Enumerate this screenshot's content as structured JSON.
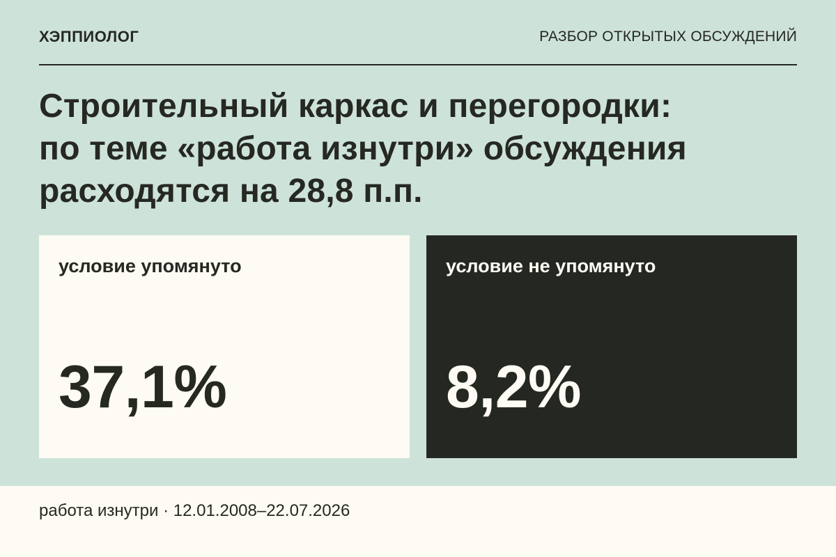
{
  "header": {
    "brand": "ХЭППИОЛОГ",
    "section": "РАЗБОР ОТКРЫТЫХ ОБСУЖДЕНИЙ"
  },
  "headline": {
    "lines": [
      "Строительный каркас и перегородки:",
      "по теме «работа изнутри» обсуждения",
      "расходятся на 28,8 п.п."
    ]
  },
  "cards": [
    {
      "label": "условие упомянуто",
      "value": "37,1%"
    },
    {
      "label": "условие не упомянуто",
      "value": "8,2%"
    }
  ],
  "footer": {
    "text": "работа изнутри · 12.01.2008–22.07.2026"
  },
  "colors": {
    "background": "#cde3da",
    "light_card": "#fdfbf3",
    "dark_card": "#252822",
    "text": "#262822"
  }
}
